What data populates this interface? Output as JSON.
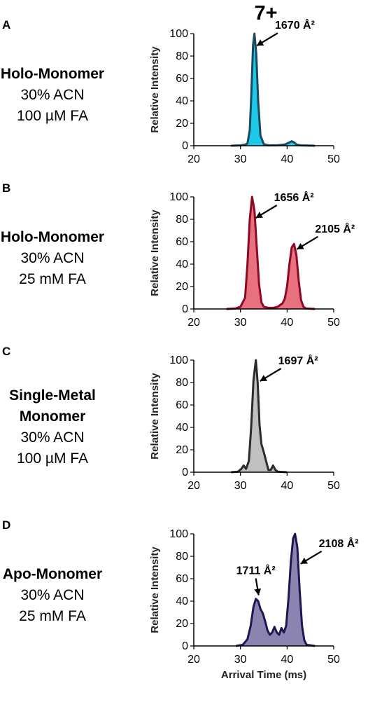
{
  "figure_title": "7+",
  "chart_data": [
    {
      "type": "area",
      "panel": "A",
      "conditions": [
        "Holo-Monomer",
        "30% ACN",
        "100 µM FA"
      ],
      "ylabel": "Relative Intensity",
      "xlabel": "",
      "xlim": [
        20,
        50
      ],
      "ylim": [
        0,
        100
      ],
      "x_ticks": [
        20,
        30,
        40,
        50
      ],
      "y_ticks": [
        0,
        20,
        40,
        60,
        80,
        100
      ],
      "fill_color": "#1ec8e8",
      "line_color": "#1b4a5e",
      "x": [
        28,
        30,
        31,
        31.5,
        32,
        32.3,
        32.7,
        33,
        33.4,
        33.8,
        34.3,
        35,
        36,
        38,
        39.5,
        40.5,
        41,
        41.5,
        42,
        43,
        46
      ],
      "y": [
        0,
        0.3,
        1,
        2,
        14,
        42,
        90,
        100,
        82,
        40,
        9,
        1.5,
        0.3,
        0.5,
        1,
        3,
        4,
        3,
        1,
        0.3,
        0
      ],
      "annotations": [
        {
          "text": "1670 Å²",
          "x": 32.9,
          "y": 88
        }
      ]
    },
    {
      "type": "area",
      "panel": "B",
      "conditions": [
        "Holo-Monomer",
        "30% ACN",
        "25 mM FA"
      ],
      "ylabel": "Relative Intensity",
      "xlabel": "",
      "xlim": [
        20,
        50
      ],
      "ylim": [
        0,
        100
      ],
      "x_ticks": [
        20,
        30,
        40,
        50
      ],
      "y_ticks": [
        0,
        20,
        40,
        60,
        80,
        100
      ],
      "fill_color": "#e8707f",
      "line_color": "#8b0a24",
      "x": [
        27,
        29,
        30,
        31,
        31.5,
        32,
        32.5,
        33,
        33.5,
        34,
        34.5,
        35,
        36,
        37,
        38,
        39,
        39.5,
        40,
        40.5,
        41,
        41.5,
        42,
        42.5,
        43,
        43.5,
        44,
        46
      ],
      "y": [
        0,
        0.5,
        2,
        10,
        40,
        80,
        100,
        88,
        55,
        22,
        6,
        2,
        1,
        1,
        2,
        5,
        9,
        20,
        40,
        55,
        58,
        48,
        25,
        8,
        2,
        0.5,
        0
      ],
      "annotations": [
        {
          "text": "1656 Å²",
          "x": 32.7,
          "y": 80
        },
        {
          "text": "2105 Å²",
          "x": 41.5,
          "y": 52
        }
      ]
    },
    {
      "type": "area",
      "panel": "C",
      "conditions": [
        "Single-Metal",
        "Monomer",
        "30% ACN",
        "100 µM FA"
      ],
      "ylabel": "Relative Intensity",
      "xlabel": "",
      "xlim": [
        20,
        50
      ],
      "ylim": [
        0,
        100
      ],
      "x_ticks": [
        20,
        30,
        40,
        50
      ],
      "y_ticks": [
        0,
        20,
        40,
        60,
        80,
        100
      ],
      "fill_color": "#c0c0c0",
      "line_color": "#2b2b2b",
      "x": [
        28,
        29.5,
        30.2,
        30.7,
        31.2,
        31.8,
        32.3,
        32.8,
        33.3,
        33.7,
        34.1,
        34.5,
        35,
        35.5,
        36,
        36.5,
        37,
        37.5,
        38,
        40
      ],
      "y": [
        0,
        0.5,
        3,
        6,
        3,
        10,
        40,
        82,
        100,
        80,
        42,
        25,
        18,
        10,
        2,
        2,
        6,
        2,
        0.5,
        0
      ],
      "annotations": [
        {
          "text": "1697 Å²",
          "x": 33.6,
          "y": 80
        }
      ]
    },
    {
      "type": "area",
      "panel": "D",
      "conditions": [
        "Apo-Monomer",
        "30% ACN",
        "25 mM FA"
      ],
      "ylabel": "Relative Intensity",
      "xlabel": "Arrival Time (ms)",
      "xlim": [
        20,
        50
      ],
      "ylim": [
        0,
        100
      ],
      "x_ticks": [
        20,
        30,
        40,
        50
      ],
      "y_ticks": [
        0,
        20,
        40,
        60,
        80,
        100
      ],
      "fill_color": "#8c84b0",
      "line_color": "#1f1850",
      "x": [
        29,
        30.5,
        31.5,
        32.2,
        32.8,
        33.3,
        33.8,
        34.3,
        34.8,
        35.3,
        35.8,
        36.3,
        36.8,
        37.3,
        37.8,
        38.3,
        38.8,
        39.3,
        39.8,
        40.3,
        40.8,
        41.3,
        41.7,
        42.2,
        42.7,
        43.2,
        43.7,
        44.2,
        46
      ],
      "y": [
        0,
        1,
        6,
        18,
        35,
        42,
        40,
        33,
        29,
        22,
        14,
        10,
        12,
        17,
        12,
        10,
        16,
        12,
        18,
        42,
        75,
        96,
        100,
        88,
        50,
        18,
        5,
        1,
        0
      ],
      "annotations": [
        {
          "text": "1711 Å²",
          "x": 33.3,
          "y": 44
        },
        {
          "text": "2108 Å²",
          "x": 42.3,
          "y": 72
        }
      ]
    }
  ],
  "colors": {
    "panel_a_fill": "#1ec8e8",
    "panel_b_fill": "#e8707f",
    "panel_c_fill": "#c0c0c0",
    "panel_d_fill": "#8c84b0"
  }
}
